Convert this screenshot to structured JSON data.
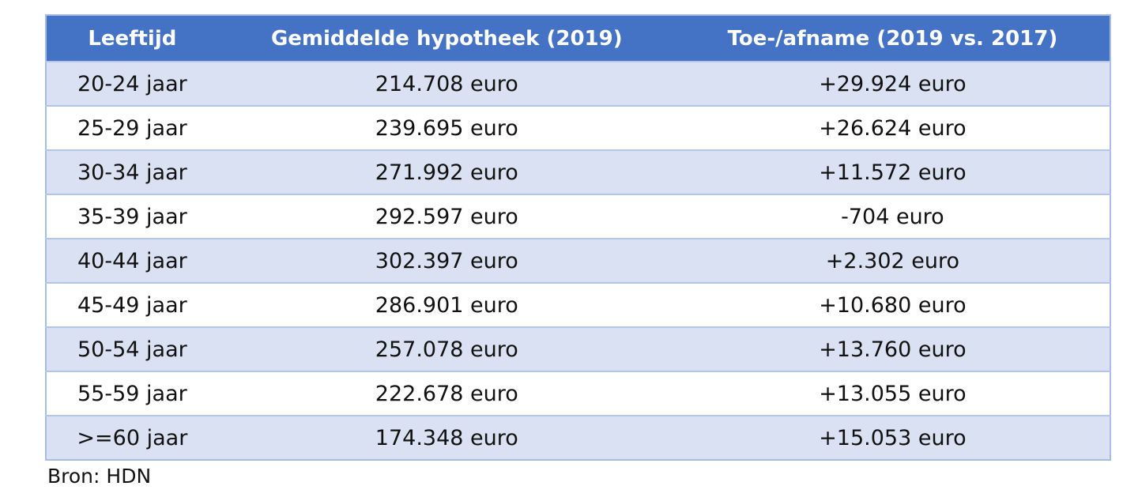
{
  "table": {
    "headers": [
      "Leeftijd",
      "Gemiddelde hypotheek (2019)",
      "Toe-/afname (2019 vs. 2017)"
    ],
    "rows": [
      [
        "20-24 jaar",
        "214.708 euro",
        "+29.924 euro"
      ],
      [
        "25-29 jaar",
        "239.695 euro",
        "+26.624 euro"
      ],
      [
        "30-34 jaar",
        "271.992 euro",
        "+11.572 euro"
      ],
      [
        "35-39 jaar",
        "292.597 euro",
        "-704 euro"
      ],
      [
        "40-44 jaar",
        "302.397 euro",
        "+2.302 euro"
      ],
      [
        "45-49 jaar",
        "286.901 euro",
        "+10.680 euro"
      ],
      [
        "50-54 jaar",
        "257.078 euro",
        "+13.760 euro"
      ],
      [
        "55-59 jaar",
        "222.678 euro",
        "+13.055 euro"
      ],
      [
        ">=60 jaar",
        "174.348 euro",
        "+15.053 euro"
      ]
    ]
  },
  "source": "Bron: HDN"
}
